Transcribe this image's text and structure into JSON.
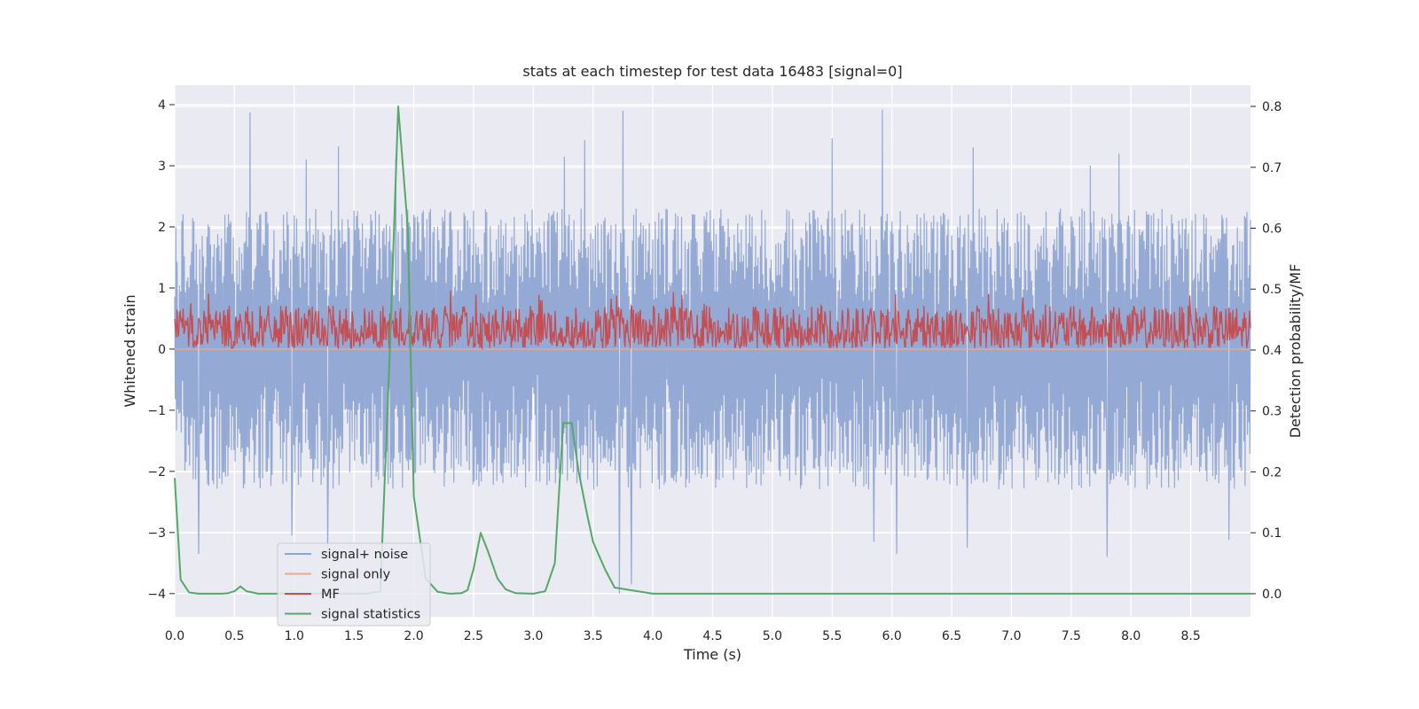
{
  "chart_data": {
    "type": "line",
    "title": "stats at each timestep for test data 16483 [signal=0]",
    "xlabel": "Time (s)",
    "ylabel": "Whitened strain",
    "y2label": "Detection probability/MF",
    "xlim": [
      0.0,
      9.0
    ],
    "ylim": [
      -4.38,
      4.32
    ],
    "y2lim": [
      -0.038,
      0.835
    ],
    "xticks": [
      "0.0",
      "0.5",
      "1.0",
      "1.5",
      "2.0",
      "2.5",
      "3.0",
      "3.5",
      "4.0",
      "4.5",
      "5.0",
      "5.5",
      "6.0",
      "6.5",
      "7.0",
      "7.5",
      "8.0",
      "8.5"
    ],
    "yticks": [
      "−4",
      "−3",
      "−2",
      "−1",
      "0",
      "1",
      "2",
      "3",
      "4"
    ],
    "y2ticks": [
      "0.0",
      "0.1",
      "0.2",
      "0.3",
      "0.4",
      "0.5",
      "0.6",
      "0.7",
      "0.8"
    ],
    "grid": true,
    "legend_position": "lower-left",
    "series": [
      {
        "name": "signal+ noise",
        "color": "#8fa5d1",
        "axis": "left",
        "kind": "noise envelope",
        "typical_range": [
          -2.3,
          2.3
        ],
        "extremes": {
          "max": 3.92,
          "min": -4.0
        },
        "peaks": [
          {
            "x": 0.63,
            "y": 3.87
          },
          {
            "x": 1.1,
            "y": 3.1
          },
          {
            "x": 1.37,
            "y": 3.32
          },
          {
            "x": 1.85,
            "y": 3.12
          },
          {
            "x": 3.26,
            "y": 3.15
          },
          {
            "x": 3.43,
            "y": 3.42
          },
          {
            "x": 3.75,
            "y": 3.9
          },
          {
            "x": 5.5,
            "y": 3.45
          },
          {
            "x": 5.92,
            "y": 3.92
          },
          {
            "x": 6.68,
            "y": 3.3
          },
          {
            "x": 7.66,
            "y": 3.0
          },
          {
            "x": 7.9,
            "y": 3.2
          },
          {
            "x": 0.2,
            "y": -3.35
          },
          {
            "x": 0.98,
            "y": -3.05
          },
          {
            "x": 1.28,
            "y": -3.25
          },
          {
            "x": 3.72,
            "y": -4.0
          },
          {
            "x": 3.82,
            "y": -3.85
          },
          {
            "x": 5.85,
            "y": -3.15
          },
          {
            "x": 6.04,
            "y": -3.35
          },
          {
            "x": 6.63,
            "y": -3.25
          },
          {
            "x": 7.8,
            "y": -3.4
          },
          {
            "x": 8.82,
            "y": -3.12
          }
        ]
      },
      {
        "name": "signal only",
        "color": "#eea987",
        "axis": "left",
        "kind": "flat",
        "value": 0
      },
      {
        "name": "MF",
        "color": "#c44e52",
        "axis": "right",
        "kind": "noise band",
        "typical_range": [
          0.4,
          0.47
        ],
        "extremes": {
          "max": 0.5,
          "min": 0.4
        }
      },
      {
        "name": "signal statistics",
        "color": "#55a868",
        "axis": "right",
        "kind": "line",
        "x": [
          0.0,
          0.05,
          0.12,
          0.2,
          0.3,
          0.4,
          0.45,
          0.5,
          0.55,
          0.6,
          0.7,
          0.8,
          1.0,
          1.5,
          1.6,
          1.72,
          1.8,
          1.87,
          1.95,
          2.0,
          2.1,
          2.2,
          2.3,
          2.4,
          2.45,
          2.5,
          2.56,
          2.62,
          2.7,
          2.77,
          2.85,
          3.0,
          3.1,
          3.18,
          3.25,
          3.32,
          3.38,
          3.45,
          3.5,
          3.6,
          3.68,
          4.0,
          9.0
        ],
        "values": [
          0.19,
          0.023,
          0.002,
          0.0,
          0.0,
          0.0,
          0.001,
          0.004,
          0.012,
          0.004,
          0.0,
          0.0,
          0.0,
          0.0,
          0.0,
          0.004,
          0.4,
          0.8,
          0.6,
          0.16,
          0.025,
          0.003,
          0.0,
          0.001,
          0.006,
          0.04,
          0.1,
          0.07,
          0.025,
          0.007,
          0.001,
          0.0,
          0.004,
          0.05,
          0.28,
          0.28,
          0.2,
          0.13,
          0.085,
          0.04,
          0.01,
          0.0,
          0.0
        ]
      }
    ]
  }
}
